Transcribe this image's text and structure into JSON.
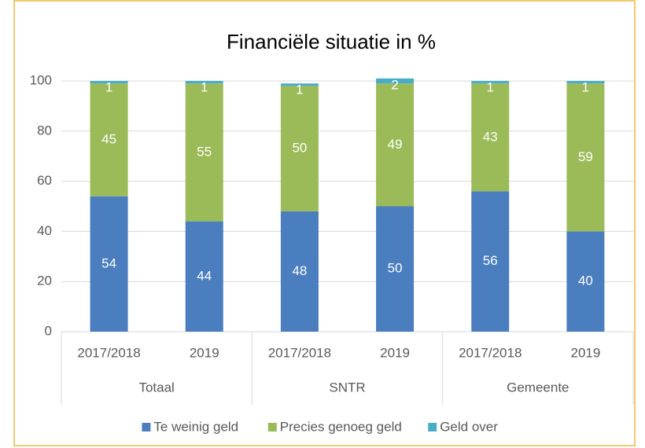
{
  "chart_data": {
    "type": "stacked_bar",
    "title": "Financiële situatie in %",
    "categories": [
      "2017/2018",
      "2019",
      "2017/2018",
      "2019",
      "2017/2018",
      "2019"
    ],
    "groups": [
      "Totaal",
      "SNTR",
      "Gemeente"
    ],
    "series": [
      {
        "name": "Te weinig geld",
        "color": "#4a7ebf",
        "values": [
          54,
          44,
          48,
          50,
          56,
          40
        ]
      },
      {
        "name": "Precies genoeg geld",
        "color": "#9bbb59",
        "values": [
          45,
          55,
          50,
          49,
          43,
          59
        ]
      },
      {
        "name": "Geld over",
        "color": "#4bacc6",
        "values": [
          1,
          1,
          1,
          2,
          1,
          1
        ]
      }
    ],
    "ylim": [
      0,
      100
    ],
    "yticks": [
      0,
      20,
      40,
      60,
      80,
      100
    ],
    "grid": true,
    "legend": "bottom"
  }
}
